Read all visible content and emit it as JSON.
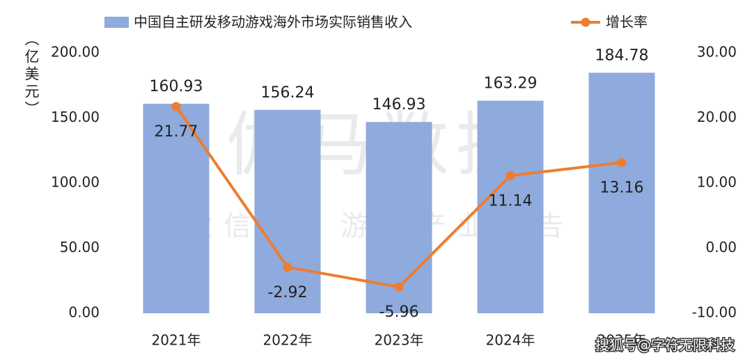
{
  "chart_data": {
    "type": "combo",
    "categories": [
      "2021年",
      "2022年",
      "2023年",
      "2024年",
      "2025年"
    ],
    "y_label": "（亿美元）",
    "series": [
      {
        "name": "中国自主研发移动游戏海外市场实际销售收入",
        "type": "bar",
        "color": "#8faadc",
        "axis": "y",
        "values": [
          160.93,
          156.24,
          146.93,
          163.29,
          184.78
        ]
      },
      {
        "name": "增长率",
        "type": "line",
        "color": "#ed7d31",
        "axis": "y2",
        "values": [
          21.77,
          -2.92,
          -5.96,
          11.14,
          13.16
        ]
      }
    ],
    "ylim": [
      0,
      200
    ],
    "yticks": [
      {
        "value": 0,
        "label": "0.00"
      },
      {
        "value": 50,
        "label": "50.00"
      },
      {
        "value": 100,
        "label": "100.00"
      },
      {
        "value": 150,
        "label": "150.00"
      },
      {
        "value": 200,
        "label": "200.00"
      }
    ],
    "y2lim": [
      -10,
      30
    ],
    "y2ticks": [
      {
        "value": -10,
        "label": "-10.00"
      },
      {
        "value": 0,
        "label": "0.00"
      },
      {
        "value": 10,
        "label": "10.00"
      },
      {
        "value": 20,
        "label": "20.00"
      },
      {
        "value": 30,
        "label": "30.00"
      }
    ],
    "annotations": [
      "伽马数据",
      "微信号：游戏产业报告",
      "搜狐号@字符无限科技"
    ]
  }
}
